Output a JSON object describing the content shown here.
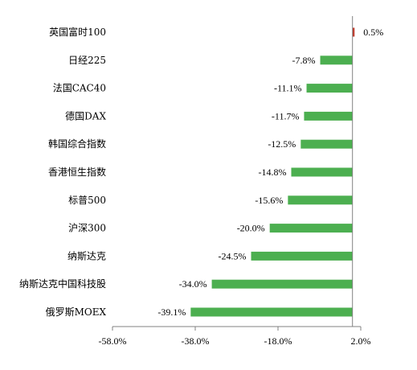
{
  "chart_data": {
    "type": "bar",
    "orientation": "horizontal",
    "title": "",
    "xlabel": "",
    "ylabel": "",
    "categories": [
      "英国富时100",
      "日经225",
      "法国CAC40",
      "德国DAX",
      "韩国综合指数",
      "香港恒生指数",
      "标普500",
      "沪深300",
      "纳斯达克",
      "纳斯达克中国科技股",
      "俄罗斯MOEX"
    ],
    "values": [
      0.5,
      -7.8,
      -11.1,
      -11.7,
      -12.5,
      -14.8,
      -15.6,
      -20.0,
      -24.5,
      -34.0,
      -39.1
    ],
    "value_labels": [
      "0.5%",
      "-7.8%",
      "-11.1%",
      "-11.7%",
      "-12.5%",
      "-14.8%",
      "-15.6%",
      "-20.0%",
      "-24.5%",
      "-34.0%",
      "-39.1%"
    ],
    "xlim": [
      -58.0,
      2.0
    ],
    "xticks": [
      -58.0,
      -38.0,
      -18.0,
      2.0
    ],
    "xtick_labels": [
      "-58.0%",
      "-38.0%",
      "-18.0%",
      "2.0%"
    ],
    "grid": false,
    "legend": "none",
    "colors": {
      "positive": "#c0392b",
      "negative": "#4caf50",
      "axis": "#808080"
    }
  }
}
